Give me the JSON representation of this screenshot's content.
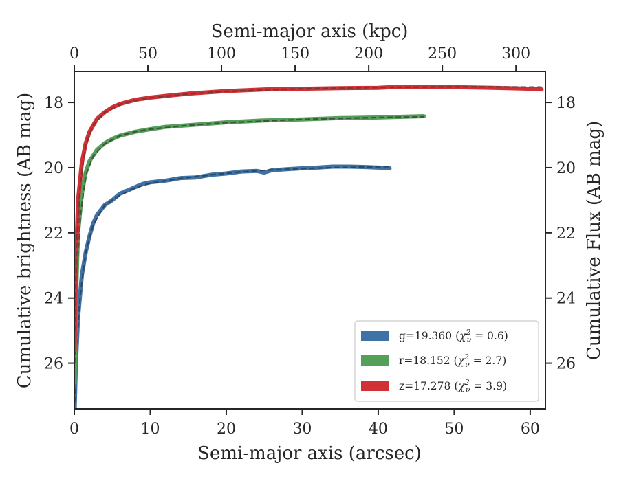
{
  "chart_data": {
    "type": "line",
    "xlabel": "Semi-major axis (arcsec)",
    "ylabel": "Cumulative brightness (AB mag)",
    "top_xlabel": "Semi-major axis (kpc)",
    "right_ylabel": "Cumulative Flux (AB mag)",
    "xlim": [
      0,
      62
    ],
    "ylim_inverted": [
      27.4,
      17.05
    ],
    "top_xlim_kpc": [
      0,
      320
    ],
    "x_ticks": [
      "0",
      "10",
      "20",
      "30",
      "40",
      "50",
      "60"
    ],
    "y_ticks": [
      "18",
      "20",
      "22",
      "24",
      "26"
    ],
    "top_x_ticks": [
      "0",
      "50",
      "100",
      "150",
      "200",
      "250",
      "300"
    ],
    "legend_position": "lower-right",
    "series": [
      {
        "name": "g=19.360 (χ²ᵥ = 0.6)",
        "legend_main": "g=19.360 (",
        "legend_chi_value": " = 0.6)",
        "color": "#3f73a6",
        "x": [
          0.05,
          0.2,
          0.5,
          1.0,
          1.5,
          2.0,
          2.5,
          3.0,
          4.0,
          5.0,
          6.0,
          7.0,
          8.0,
          9.0,
          10.0,
          12.0,
          14.0,
          16.0,
          18.0,
          20.0,
          22.0,
          24.0,
          25.0,
          26.0,
          28.0,
          30.0,
          32.0,
          34.0,
          36.0,
          38.0,
          40.0,
          41.5
        ],
        "values": [
          27.4,
          26.1,
          24.6,
          23.3,
          22.6,
          22.1,
          21.7,
          21.45,
          21.15,
          21.0,
          20.8,
          20.7,
          20.6,
          20.5,
          20.45,
          20.4,
          20.32,
          20.3,
          20.22,
          20.18,
          20.12,
          20.1,
          20.15,
          20.08,
          20.05,
          20.02,
          20.0,
          19.97,
          19.97,
          19.98,
          20.0,
          20.02
        ],
        "model_x": [
          0.05,
          0.3,
          0.8,
          1.5,
          2.5,
          4.0,
          6.0,
          8.0,
          10.0,
          14.0,
          18.0,
          22.0,
          26.0,
          30.0,
          34.0,
          38.0,
          41.5
        ],
        "model_values": [
          27.2,
          25.5,
          23.9,
          22.6,
          21.75,
          21.15,
          20.85,
          20.62,
          20.48,
          20.33,
          20.22,
          20.13,
          20.07,
          20.03,
          20.0,
          19.98,
          19.97
        ]
      },
      {
        "name": "r=18.152 (χ²ᵥ = 2.7)",
        "legend_main": "r=18.152 (",
        "legend_chi_value": " = 2.7)",
        "color": "#55a058",
        "x": [
          0.05,
          0.2,
          0.5,
          1.0,
          1.5,
          2.0,
          3.0,
          4.0,
          5.0,
          6.0,
          8.0,
          10.0,
          12.0,
          15.0,
          20.0,
          25.0,
          30.0,
          35.0,
          40.0,
          46.0
        ],
        "values": [
          26.6,
          24.2,
          22.0,
          20.8,
          20.15,
          19.8,
          19.45,
          19.25,
          19.12,
          19.02,
          18.9,
          18.82,
          18.75,
          18.7,
          18.61,
          18.55,
          18.52,
          18.48,
          18.46,
          18.42
        ],
        "model_x": [
          0.05,
          0.3,
          0.8,
          1.5,
          2.5,
          4.0,
          6.0,
          8.0,
          10.0,
          15.0,
          20.0,
          30.0,
          40.0,
          46.0
        ],
        "model_values": [
          26.0,
          23.4,
          21.5,
          20.25,
          19.65,
          19.27,
          19.02,
          18.9,
          18.82,
          18.7,
          18.62,
          18.52,
          18.46,
          18.44
        ]
      },
      {
        "name": "z=17.278 (χ²ᵥ = 3.9)",
        "legend_main": "z=17.278 (",
        "legend_chi_value": " = 3.9)",
        "color": "#cf3134",
        "x": [
          0.05,
          0.2,
          0.5,
          1.0,
          1.5,
          2.0,
          3.0,
          4.0,
          5.0,
          6.0,
          8.0,
          10.0,
          12.0,
          15.0,
          20.0,
          25.0,
          30.0,
          35.0,
          40.0,
          42.5,
          45.0,
          50.0,
          55.0,
          60.0,
          61.5
        ],
        "values": [
          25.6,
          23.1,
          21.0,
          19.85,
          19.25,
          18.9,
          18.5,
          18.3,
          18.15,
          18.05,
          17.92,
          17.85,
          17.8,
          17.73,
          17.65,
          17.6,
          17.58,
          17.56,
          17.55,
          17.52,
          17.52,
          17.53,
          17.55,
          17.58,
          17.6
        ],
        "model_x": [
          0.05,
          0.3,
          0.8,
          1.5,
          2.5,
          4.0,
          6.0,
          8.0,
          10.0,
          15.0,
          20.0,
          30.0,
          40.0,
          50.0,
          60.0,
          61.5
        ],
        "model_values": [
          25.0,
          22.4,
          20.5,
          19.3,
          18.7,
          18.3,
          18.06,
          17.94,
          17.86,
          17.74,
          17.66,
          17.58,
          17.54,
          17.52,
          17.52,
          17.52
        ]
      }
    ]
  }
}
